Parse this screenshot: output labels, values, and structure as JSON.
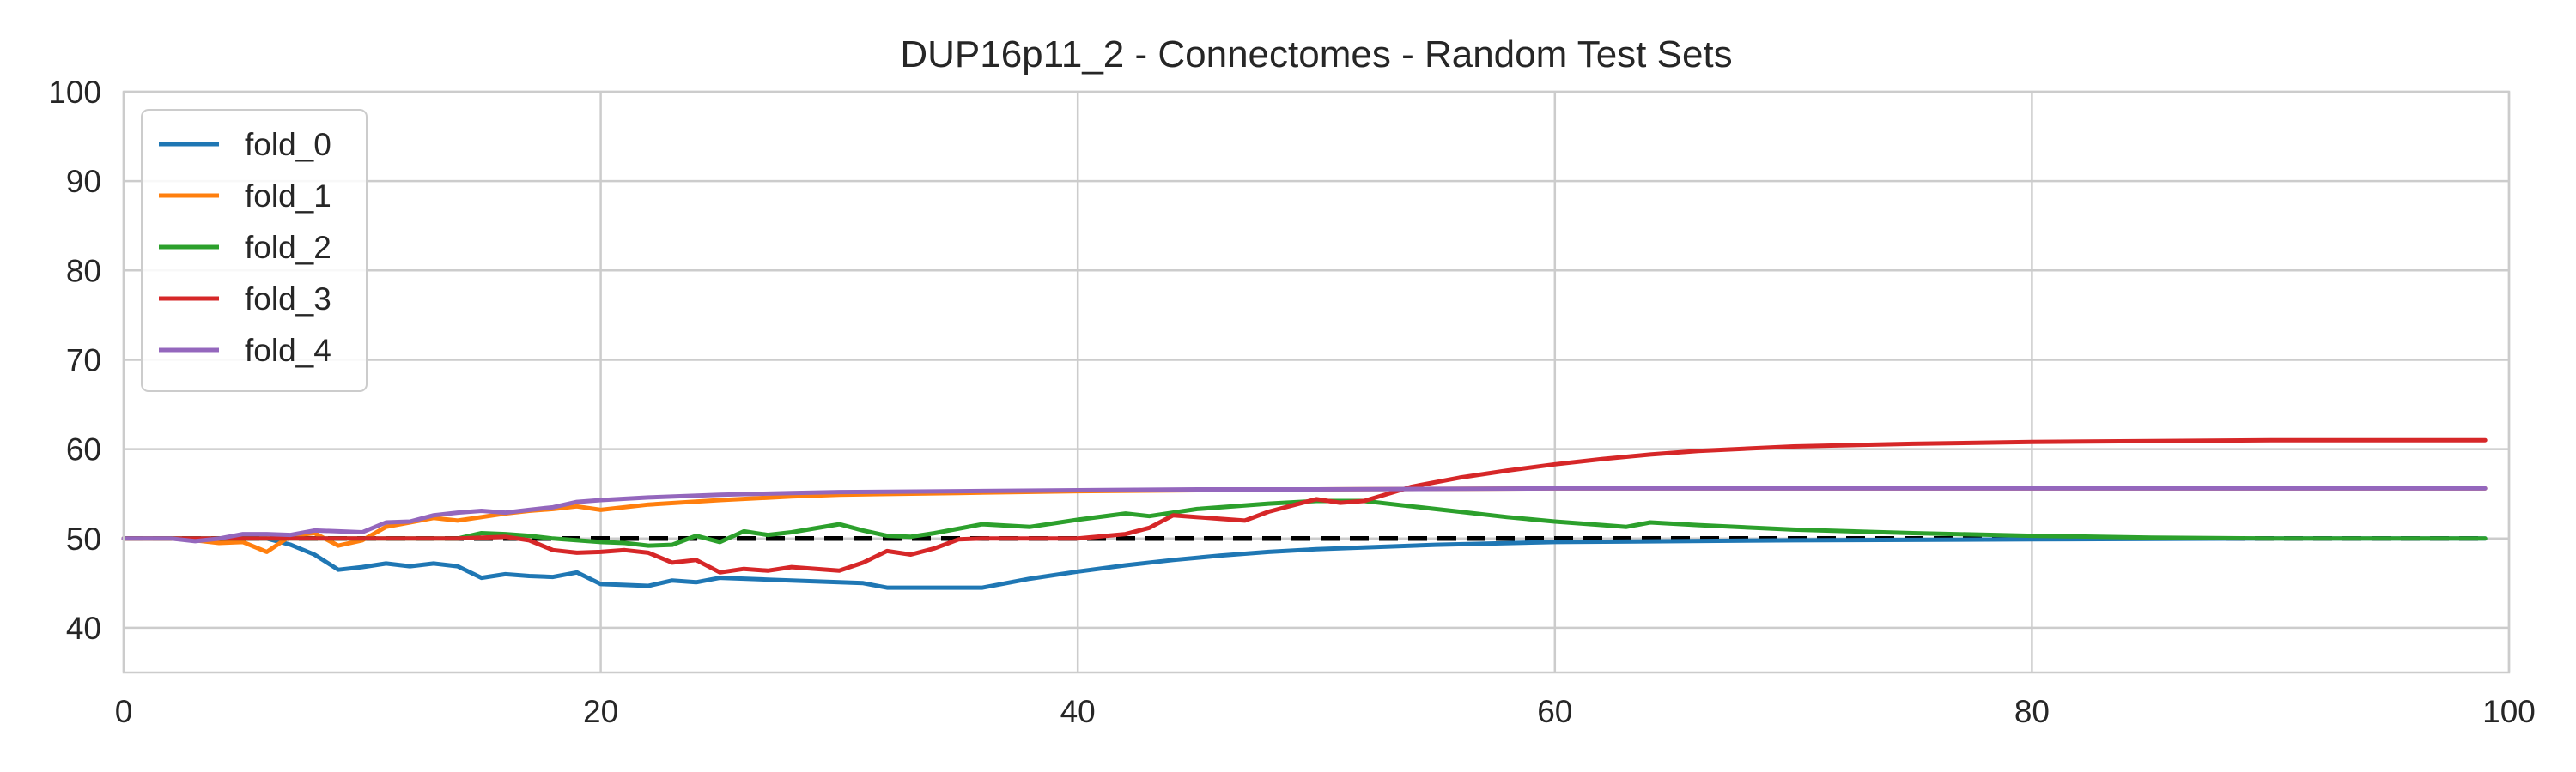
{
  "chart_data": {
    "type": "line",
    "title": "DUP16p11_2 - Connectomes - Random Test Sets",
    "xlabel": "",
    "ylabel": "",
    "xlim": [
      0,
      100
    ],
    "ylim": [
      35,
      100
    ],
    "xticks": [
      0,
      20,
      40,
      60,
      80,
      100
    ],
    "yticks": [
      40,
      50,
      60,
      70,
      80,
      90,
      100
    ],
    "grid": true,
    "legend_position": "top-left",
    "reference_line": {
      "y": 50,
      "style": "dashed",
      "color": "#000000"
    },
    "series": [
      {
        "name": "fold_0",
        "color": "#1f77b4",
        "points": [
          [
            0,
            50
          ],
          [
            1,
            50
          ],
          [
            2,
            50
          ],
          [
            3,
            50
          ],
          [
            4,
            50
          ],
          [
            5,
            50
          ],
          [
            6,
            50
          ],
          [
            7,
            49.3
          ],
          [
            8,
            48.2
          ],
          [
            9,
            46.5
          ],
          [
            10,
            46.8
          ],
          [
            11,
            47.2
          ],
          [
            12,
            46.9
          ],
          [
            13,
            47.2
          ],
          [
            14,
            46.9
          ],
          [
            15,
            45.6
          ],
          [
            16,
            46
          ],
          [
            17,
            45.8
          ],
          [
            18,
            45.7
          ],
          [
            19,
            46.2
          ],
          [
            20,
            44.9
          ],
          [
            21,
            44.8
          ],
          [
            22,
            44.7
          ],
          [
            23,
            45.3
          ],
          [
            24,
            45.1
          ],
          [
            25,
            45.6
          ],
          [
            26,
            45.5
          ],
          [
            27,
            45.4
          ],
          [
            28,
            45.3
          ],
          [
            29,
            45.2
          ],
          [
            30,
            45.1
          ],
          [
            31,
            45
          ],
          [
            32,
            44.5
          ],
          [
            33,
            44.5
          ],
          [
            34,
            44.5
          ],
          [
            35,
            44.5
          ],
          [
            36,
            44.5
          ],
          [
            38,
            45.5
          ],
          [
            40,
            46.3
          ],
          [
            42,
            47
          ],
          [
            44,
            47.6
          ],
          [
            46,
            48.1
          ],
          [
            48,
            48.5
          ],
          [
            50,
            48.8
          ],
          [
            55,
            49.3
          ],
          [
            60,
            49.6
          ],
          [
            70,
            49.8
          ],
          [
            80,
            49.9
          ],
          [
            90,
            50
          ],
          [
            99,
            50
          ]
        ]
      },
      {
        "name": "fold_1",
        "color": "#ff7f0e",
        "points": [
          [
            0,
            50
          ],
          [
            1,
            50
          ],
          [
            2,
            50
          ],
          [
            3,
            49.8
          ],
          [
            4,
            49.5
          ],
          [
            5,
            49.6
          ],
          [
            6,
            48.5
          ],
          [
            7,
            50.3
          ],
          [
            8,
            50.6
          ],
          [
            9,
            49.2
          ],
          [
            10,
            49.8
          ],
          [
            11,
            51.3
          ],
          [
            12,
            51.8
          ],
          [
            13,
            52.3
          ],
          [
            14,
            52
          ],
          [
            15,
            52.4
          ],
          [
            16,
            52.8
          ],
          [
            17,
            53.1
          ],
          [
            18,
            53.3
          ],
          [
            19,
            53.6
          ],
          [
            20,
            53.2
          ],
          [
            22,
            53.8
          ],
          [
            25,
            54.3
          ],
          [
            28,
            54.7
          ],
          [
            30,
            54.9
          ],
          [
            35,
            55.1
          ],
          [
            40,
            55.3
          ],
          [
            45,
            55.4
          ],
          [
            50,
            55.5
          ],
          [
            60,
            55.6
          ],
          [
            70,
            55.6
          ],
          [
            80,
            55.6
          ],
          [
            90,
            55.6
          ],
          [
            99,
            55.6
          ]
        ]
      },
      {
        "name": "fold_2",
        "color": "#2ca02c",
        "points": [
          [
            0,
            50
          ],
          [
            2,
            50
          ],
          [
            4,
            50
          ],
          [
            6,
            50
          ],
          [
            8,
            50
          ],
          [
            10,
            50
          ],
          [
            12,
            50
          ],
          [
            14,
            50
          ],
          [
            15,
            50.6
          ],
          [
            16,
            50.5
          ],
          [
            17,
            50.3
          ],
          [
            18,
            50
          ],
          [
            20,
            49.6
          ],
          [
            21,
            49.5
          ],
          [
            22,
            49.2
          ],
          [
            23,
            49.3
          ],
          [
            24,
            50.3
          ],
          [
            25,
            49.6
          ],
          [
            26,
            50.8
          ],
          [
            27,
            50.4
          ],
          [
            28,
            50.7
          ],
          [
            30,
            51.6
          ],
          [
            31,
            50.9
          ],
          [
            32,
            50.3
          ],
          [
            33,
            50.2
          ],
          [
            34,
            50.6
          ],
          [
            36,
            51.6
          ],
          [
            38,
            51.3
          ],
          [
            40,
            52.1
          ],
          [
            42,
            52.8
          ],
          [
            43,
            52.5
          ],
          [
            45,
            53.3
          ],
          [
            48,
            53.9
          ],
          [
            50,
            54.2
          ],
          [
            52,
            54.2
          ],
          [
            54,
            53.6
          ],
          [
            56,
            53
          ],
          [
            58,
            52.4
          ],
          [
            60,
            51.9
          ],
          [
            62,
            51.5
          ],
          [
            63,
            51.3
          ],
          [
            64,
            51.8
          ],
          [
            66,
            51.5
          ],
          [
            70,
            51
          ],
          [
            75,
            50.6
          ],
          [
            80,
            50.3
          ],
          [
            85,
            50.1
          ],
          [
            90,
            50
          ],
          [
            99,
            50
          ]
        ]
      },
      {
        "name": "fold_3",
        "color": "#d62728",
        "points": [
          [
            0,
            50
          ],
          [
            2,
            50
          ],
          [
            4,
            50
          ],
          [
            6,
            50
          ],
          [
            8,
            50
          ],
          [
            10,
            50
          ],
          [
            12,
            50
          ],
          [
            14,
            50
          ],
          [
            16,
            50.2
          ],
          [
            17,
            49.8
          ],
          [
            18,
            48.7
          ],
          [
            19,
            48.4
          ],
          [
            20,
            48.5
          ],
          [
            21,
            48.7
          ],
          [
            22,
            48.4
          ],
          [
            23,
            47.3
          ],
          [
            24,
            47.6
          ],
          [
            25,
            46.2
          ],
          [
            26,
            46.6
          ],
          [
            27,
            46.4
          ],
          [
            28,
            46.8
          ],
          [
            30,
            46.4
          ],
          [
            31,
            47.3
          ],
          [
            32,
            48.6
          ],
          [
            33,
            48.2
          ],
          [
            34,
            48.9
          ],
          [
            35,
            49.9
          ],
          [
            36,
            50
          ],
          [
            38,
            50
          ],
          [
            40,
            50
          ],
          [
            42,
            50.5
          ],
          [
            43,
            51.2
          ],
          [
            44,
            52.6
          ],
          [
            46,
            52.2
          ],
          [
            47,
            52
          ],
          [
            48,
            53
          ],
          [
            50,
            54.4
          ],
          [
            51,
            54
          ],
          [
            52,
            54.2
          ],
          [
            54,
            55.8
          ],
          [
            56,
            56.8
          ],
          [
            58,
            57.6
          ],
          [
            60,
            58.3
          ],
          [
            62,
            58.9
          ],
          [
            64,
            59.4
          ],
          [
            66,
            59.8
          ],
          [
            70,
            60.3
          ],
          [
            75,
            60.6
          ],
          [
            80,
            60.8
          ],
          [
            85,
            60.9
          ],
          [
            90,
            61
          ],
          [
            99,
            61
          ]
        ]
      },
      {
        "name": "fold_4",
        "color": "#9467bd",
        "points": [
          [
            0,
            50
          ],
          [
            1,
            50
          ],
          [
            2,
            50
          ],
          [
            3,
            49.7
          ],
          [
            4,
            50
          ],
          [
            5,
            50.5
          ],
          [
            6,
            50.5
          ],
          [
            7,
            50.4
          ],
          [
            8,
            50.9
          ],
          [
            9,
            50.8
          ],
          [
            10,
            50.7
          ],
          [
            11,
            51.8
          ],
          [
            12,
            51.9
          ],
          [
            13,
            52.6
          ],
          [
            14,
            52.9
          ],
          [
            15,
            53.1
          ],
          [
            16,
            52.9
          ],
          [
            17,
            53.2
          ],
          [
            18,
            53.5
          ],
          [
            19,
            54.1
          ],
          [
            20,
            54.3
          ],
          [
            22,
            54.6
          ],
          [
            25,
            54.9
          ],
          [
            28,
            55.1
          ],
          [
            30,
            55.2
          ],
          [
            35,
            55.3
          ],
          [
            40,
            55.4
          ],
          [
            45,
            55.5
          ],
          [
            50,
            55.5
          ],
          [
            60,
            55.6
          ],
          [
            70,
            55.6
          ],
          [
            80,
            55.6
          ],
          [
            90,
            55.6
          ],
          [
            99,
            55.6
          ]
        ]
      }
    ]
  }
}
